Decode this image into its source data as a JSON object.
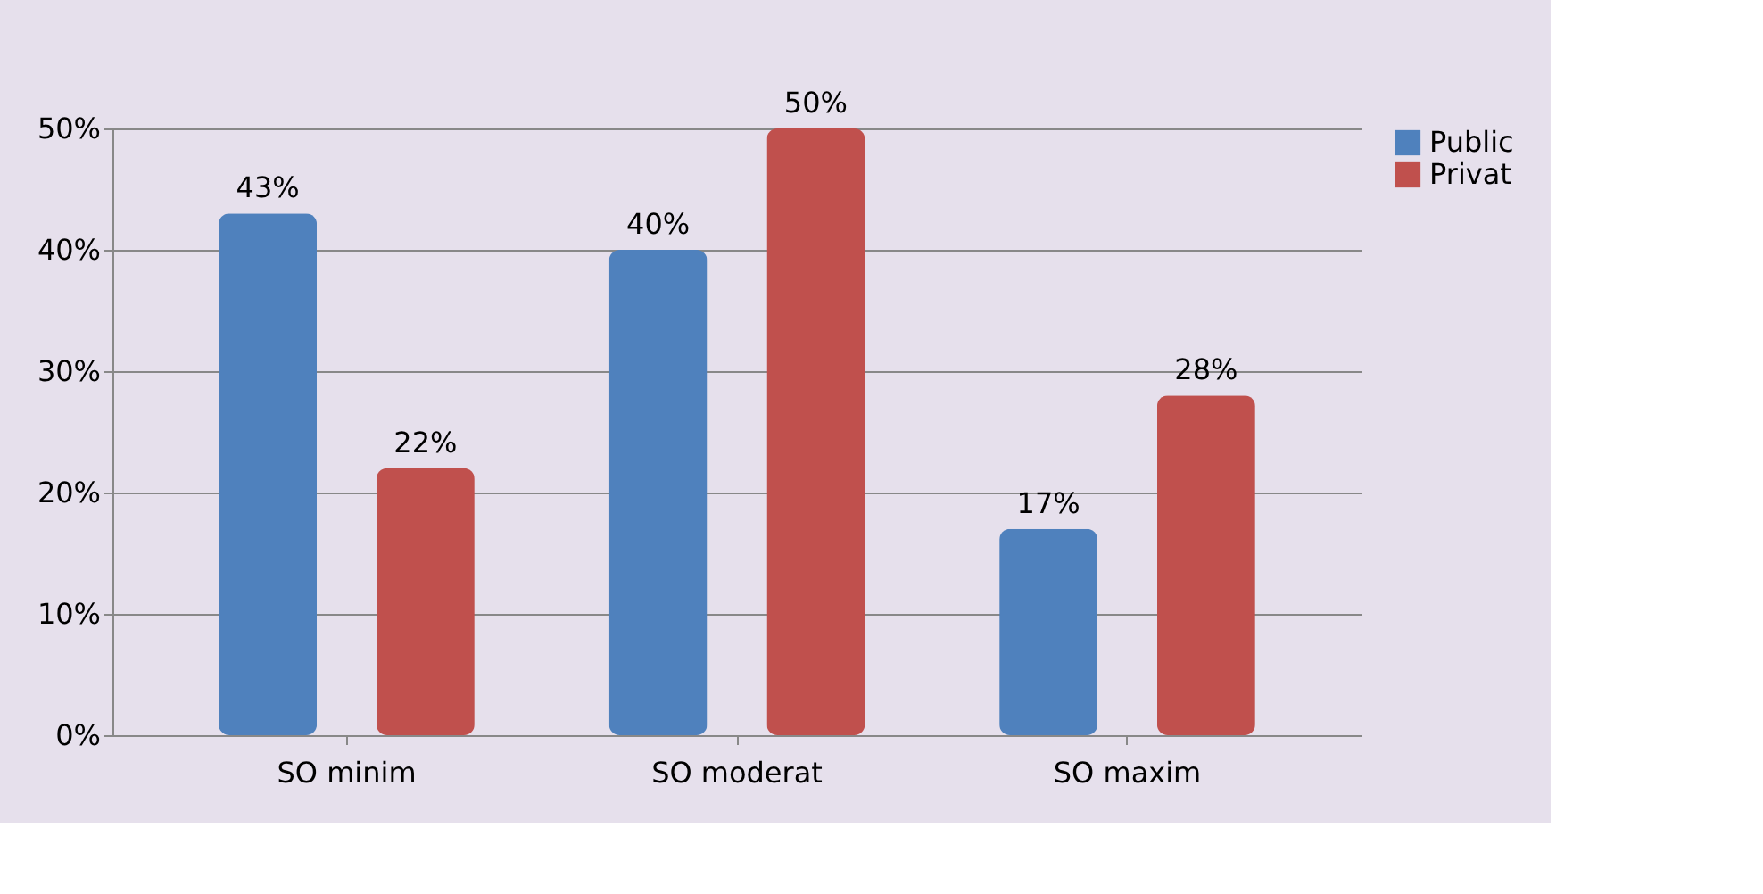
{
  "chart_data": {
    "type": "bar",
    "categories": [
      "SO minim",
      "SO moderat",
      "SO maxim"
    ],
    "series": [
      {
        "name": "Public",
        "color": "#4f81bd",
        "values": [
          43,
          40,
          17
        ],
        "value_labels": [
          "43%",
          "40%",
          "17%"
        ]
      },
      {
        "name": "Privat",
        "color": "#c0504d",
        "values": [
          22,
          50,
          28
        ],
        "value_labels": [
          "22%",
          "50%",
          "28%"
        ]
      }
    ],
    "ylim": [
      0,
      50
    ],
    "yticks": [
      {
        "value": 0,
        "label": "0%"
      },
      {
        "value": 10,
        "label": "10%"
      },
      {
        "value": 20,
        "label": "20%"
      },
      {
        "value": 30,
        "label": "30%"
      },
      {
        "value": 40,
        "label": "40%"
      },
      {
        "value": 50,
        "label": "50%"
      }
    ],
    "grid": "y",
    "legend": "right"
  }
}
